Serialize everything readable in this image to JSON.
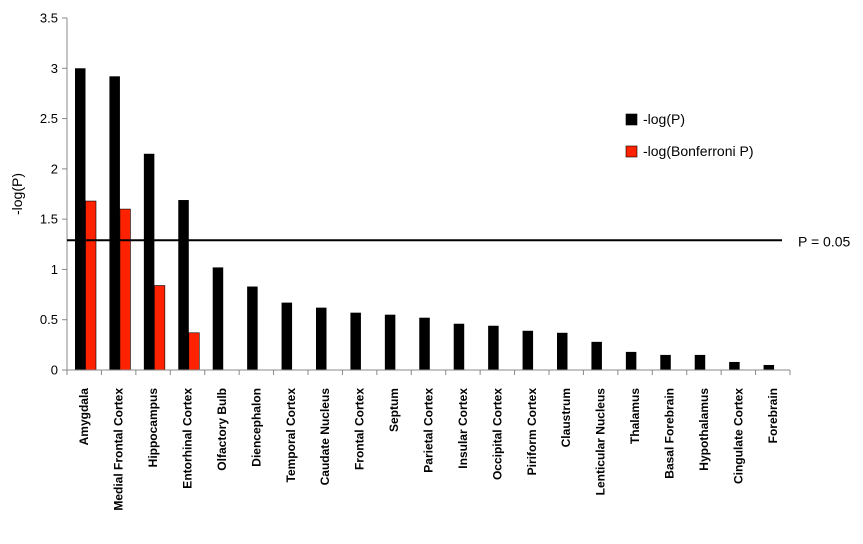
{
  "chart_data": {
    "type": "bar",
    "ylabel": "-log(P)",
    "ylim": [
      0,
      3.5
    ],
    "yticks": [
      "0",
      "0.5",
      "1",
      "1.5",
      "2",
      "2.5",
      "3",
      "3.5"
    ],
    "categories": [
      "Amygdala",
      "Medial Frontal Cortex",
      "Hippocampus",
      "Entorhinal Cortex",
      "Olfactory Bulb",
      "Diencephalon",
      "Temporal Cortex",
      "Caudate Nucleus",
      "Frontal Cortex",
      "Septum",
      "Parietal Cortex",
      "Insular Cortex",
      "Occipital Cortex",
      "Piriform Cortex",
      "Claustrum",
      "Lenticular Nucleus",
      "Thalamus",
      "Basal Forebrain",
      "Hypothalamus",
      "Cingulate Cortex",
      "Forebrain"
    ],
    "series": [
      {
        "name": "-log(P)",
        "color": "#000000",
        "values": [
          3.0,
          2.92,
          2.15,
          1.69,
          1.02,
          0.83,
          0.67,
          0.62,
          0.57,
          0.55,
          0.52,
          0.46,
          0.44,
          0.39,
          0.37,
          0.28,
          0.18,
          0.15,
          0.15,
          0.08,
          0.05
        ]
      },
      {
        "name": "-log(Bonferroni P)",
        "color": "#ff2200",
        "values": [
          1.68,
          1.6,
          0.84,
          0.37,
          null,
          null,
          null,
          null,
          null,
          null,
          null,
          null,
          null,
          null,
          null,
          null,
          null,
          null,
          null,
          null,
          null
        ]
      }
    ],
    "reference_line": {
      "value": 1.3,
      "label": "P = 0.05"
    },
    "legend_position": "right",
    "grid": false
  }
}
